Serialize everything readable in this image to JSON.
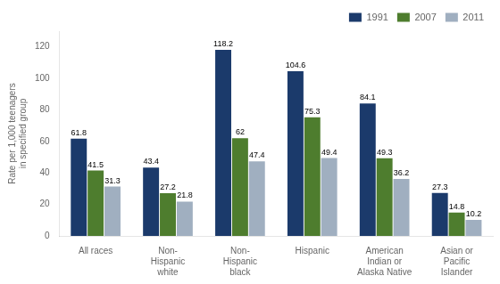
{
  "chart_data": {
    "type": "bar",
    "categories": [
      "All races",
      "Non-\nHispanic\nwhite",
      "Non-\nHispanic\nblack",
      "Hispanic",
      "American\nIndian or\nAlaska Native",
      "Asian or\nPacific\nIslander"
    ],
    "series": [
      {
        "name": "1991",
        "color": "#1b3a6b",
        "values": [
          61.8,
          43.4,
          118.2,
          104.6,
          84.1,
          27.3
        ]
      },
      {
        "name": "2007",
        "color": "#4e7d2e",
        "values": [
          41.5,
          27.2,
          62.0,
          75.3,
          49.3,
          14.8
        ]
      },
      {
        "name": "2011",
        "color": "#a0afc0",
        "values": [
          31.3,
          21.8,
          47.4,
          49.4,
          36.2,
          10.2
        ]
      }
    ],
    "ylabel": "Rate per 1,000 teenagers\nin specified group",
    "ylim": [
      0,
      130
    ],
    "yticks": [
      0,
      20,
      40,
      60,
      80,
      100,
      120
    ],
    "grid": false,
    "legend": "upper right",
    "data_labels": true
  }
}
